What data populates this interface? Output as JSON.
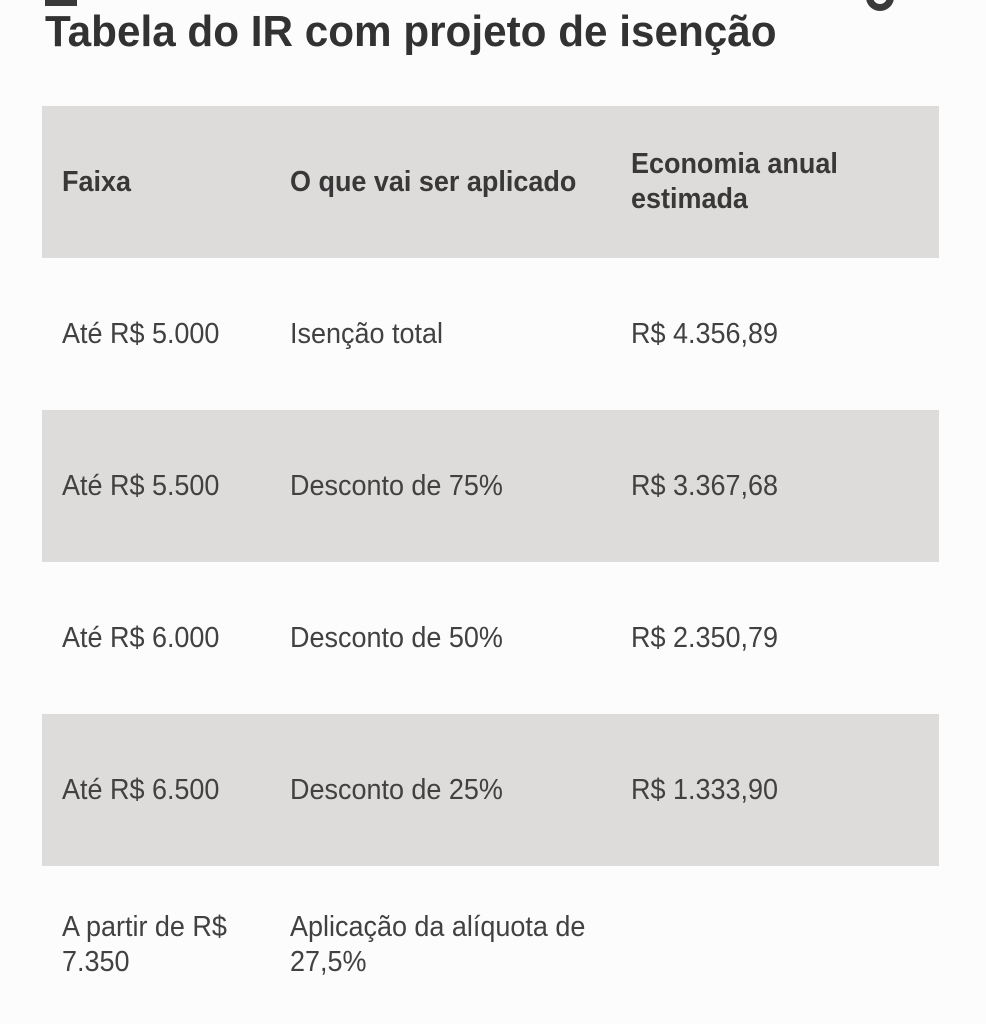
{
  "page": {
    "colors": {
      "background": "#fcfcfc",
      "stripe_gray": "#dedcda",
      "title_text": "#323232",
      "body_text": "#414141"
    }
  },
  "chart_data": {
    "type": "table",
    "title": "Tabela do IR com projeto de isenção",
    "columns": [
      "Faixa",
      "O que vai ser aplicado",
      "Economia anual estimada"
    ],
    "rows": [
      [
        "Até R$ 5.000",
        "Isenção total",
        "R$ 4.356,89"
      ],
      [
        "Até R$ 5.500",
        "Desconto de 75%",
        "R$ 3.367,68"
      ],
      [
        "Até R$ 6.000",
        "Desconto de 50%",
        "R$ 2.350,79"
      ],
      [
        "Até R$ 6.500",
        "Desconto de 25%",
        "R$ 1.333,90"
      ],
      [
        "A partir de R$ 7.350",
        "Aplicação da alíquota de 27,5%",
        ""
      ]
    ],
    "layout": {
      "striped_row_indexes": [
        1,
        3
      ],
      "header_background": "#dedcda",
      "grid": false,
      "legend": "none"
    }
  }
}
